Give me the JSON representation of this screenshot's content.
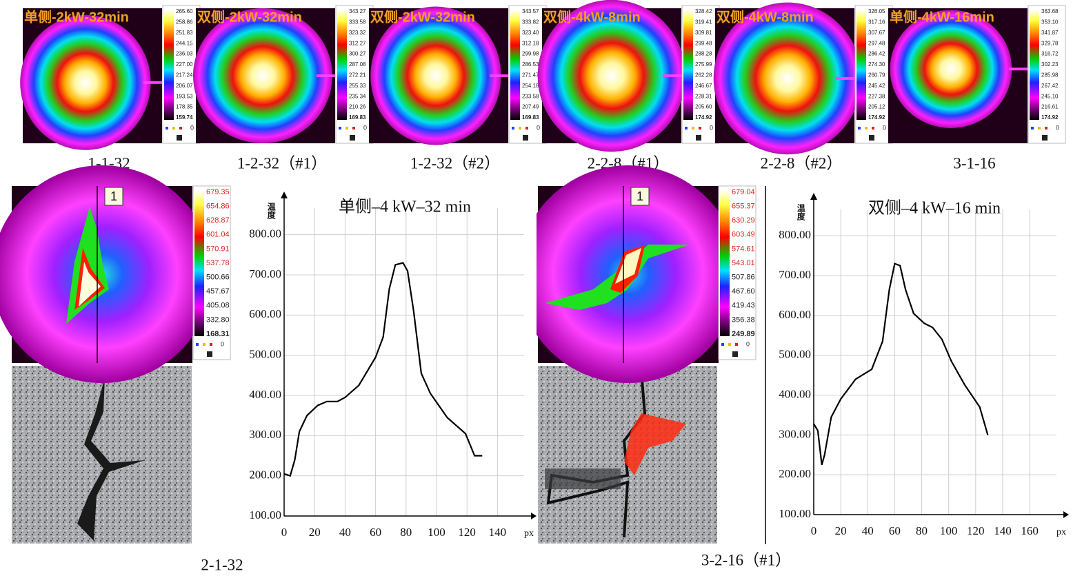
{
  "thermal_panels": [
    {
      "title": "单侧-2kW-32min",
      "colorbar": [
        "265.60",
        "258.86",
        "251.83",
        "244.15",
        "236.03",
        "227.00",
        "217.24",
        "206.07",
        "193.53",
        "178.35",
        "159.74"
      ],
      "marker": "0",
      "caption": "1-1-32"
    },
    {
      "title": "双侧-2kW-32min",
      "colorbar": [
        "343.27",
        "333.58",
        "323.32",
        "312.27",
        "300.27",
        "287.08",
        "272.21",
        "255.33",
        "235.34",
        "210.26",
        "169.83"
      ],
      "marker": "0",
      "caption": "1-2-32（#1）"
    },
    {
      "title": "双侧-2kW-32min",
      "colorbar": [
        "343.57",
        "333.82",
        "323.40",
        "312.18",
        "299.98",
        "286.53",
        "271.47",
        "254.18",
        "233.58",
        "207.49",
        "169.83"
      ],
      "marker": "0",
      "caption": "1-2-32（#2）"
    },
    {
      "title": "双侧-4kW-8min",
      "colorbar": [
        "328.42",
        "319.41",
        "309.81",
        "299.48",
        "288.28",
        "275.99",
        "262.28",
        "246.67",
        "228.31",
        "205.60",
        "174.92"
      ],
      "marker": "0",
      "caption": "2-2-8（#1）"
    },
    {
      "title": "双侧-4kW-8min",
      "colorbar": [
        "326.05",
        "317.16",
        "307.67",
        "297.48",
        "286.42",
        "274.30",
        "260.79",
        "245.42",
        "227.38",
        "205.12",
        "174.92"
      ],
      "marker": "0",
      "caption": "2-2-8（#2）"
    },
    {
      "title": "单侧-4kW-16min",
      "colorbar": [
        "363.68",
        "353.10",
        "341.87",
        "329.78",
        "316.72",
        "302.23",
        "285.98",
        "267.42",
        "245.10",
        "216.61",
        "174.92"
      ],
      "marker": "0",
      "caption": "3-1-16"
    }
  ],
  "bottom_thermal": [
    {
      "label": "1",
      "colorbar": [
        "679.35",
        "654.86",
        "628.87",
        "601.04",
        "570.91",
        "537.78",
        "500.66",
        "457.67",
        "405.08",
        "332.80",
        "168.31"
      ],
      "marker": "0",
      "caption": "2-1-32"
    },
    {
      "label": "1",
      "colorbar": [
        "679.04",
        "655.37",
        "630.29",
        "603.49",
        "574.61",
        "543.01",
        "507.86",
        "467.60",
        "419.43",
        "356.38",
        "249.89"
      ],
      "marker": "0",
      "caption": "3-2-16（#1）"
    }
  ],
  "chart_data": [
    {
      "type": "line",
      "title": "单侧–4 kW–32 min",
      "y_label": "温度",
      "x_unit": "px",
      "color": "#000000",
      "grid": true,
      "x": [
        0,
        4,
        7,
        10,
        15,
        22,
        28,
        35,
        40,
        49,
        60,
        65,
        69,
        73,
        78,
        81,
        85,
        90,
        96,
        107,
        119,
        125,
        130
      ],
      "values": [
        205,
        200,
        240,
        310,
        350,
        375,
        385,
        385,
        395,
        425,
        495,
        545,
        665,
        725,
        730,
        710,
        610,
        455,
        405,
        345,
        305,
        250,
        250
      ],
      "xlim": [
        0,
        162
      ],
      "ylim": [
        100,
        880
      ],
      "xticks": [
        0,
        20,
        40,
        60,
        80,
        100,
        120,
        140
      ],
      "yticks": [
        {
          "value": 100,
          "label": "100.00"
        },
        {
          "value": 200,
          "label": "200.00"
        },
        {
          "value": 300,
          "label": "300.00"
        },
        {
          "value": 400,
          "label": "400.00"
        },
        {
          "value": 500,
          "label": "500.00"
        },
        {
          "value": 600,
          "label": "600.00"
        },
        {
          "value": 700,
          "label": "700.00"
        },
        {
          "value": 800,
          "label": "800.00"
        }
      ]
    },
    {
      "type": "line",
      "title": "双侧–4 kW–16 min",
      "y_label": "温度",
      "x_unit": "px",
      "color": "#000000",
      "grid": true,
      "x": [
        0,
        3,
        6,
        8,
        13,
        20,
        31,
        43,
        51,
        56,
        60,
        64,
        68,
        74,
        82,
        88,
        95,
        102,
        112,
        123,
        129
      ],
      "values": [
        328,
        311,
        225,
        250,
        345,
        390,
        440,
        465,
        535,
        665,
        730,
        725,
        665,
        605,
        580,
        570,
        540,
        485,
        425,
        370,
        300
      ],
      "xlim": [
        0,
        185
      ],
      "ylim": [
        100,
        880
      ],
      "xticks": [
        0,
        20,
        40,
        60,
        80,
        100,
        120,
        140,
        160
      ],
      "yticks": [
        {
          "value": 100,
          "label": "100.00"
        },
        {
          "value": 200,
          "label": "200.00"
        },
        {
          "value": 300,
          "label": "300.00"
        },
        {
          "value": 400,
          "label": "400.00"
        },
        {
          "value": 500,
          "label": "500.00"
        },
        {
          "value": 600,
          "label": "600.00"
        },
        {
          "value": 700,
          "label": "700.00"
        },
        {
          "value": 800,
          "label": "800.00"
        }
      ]
    }
  ]
}
